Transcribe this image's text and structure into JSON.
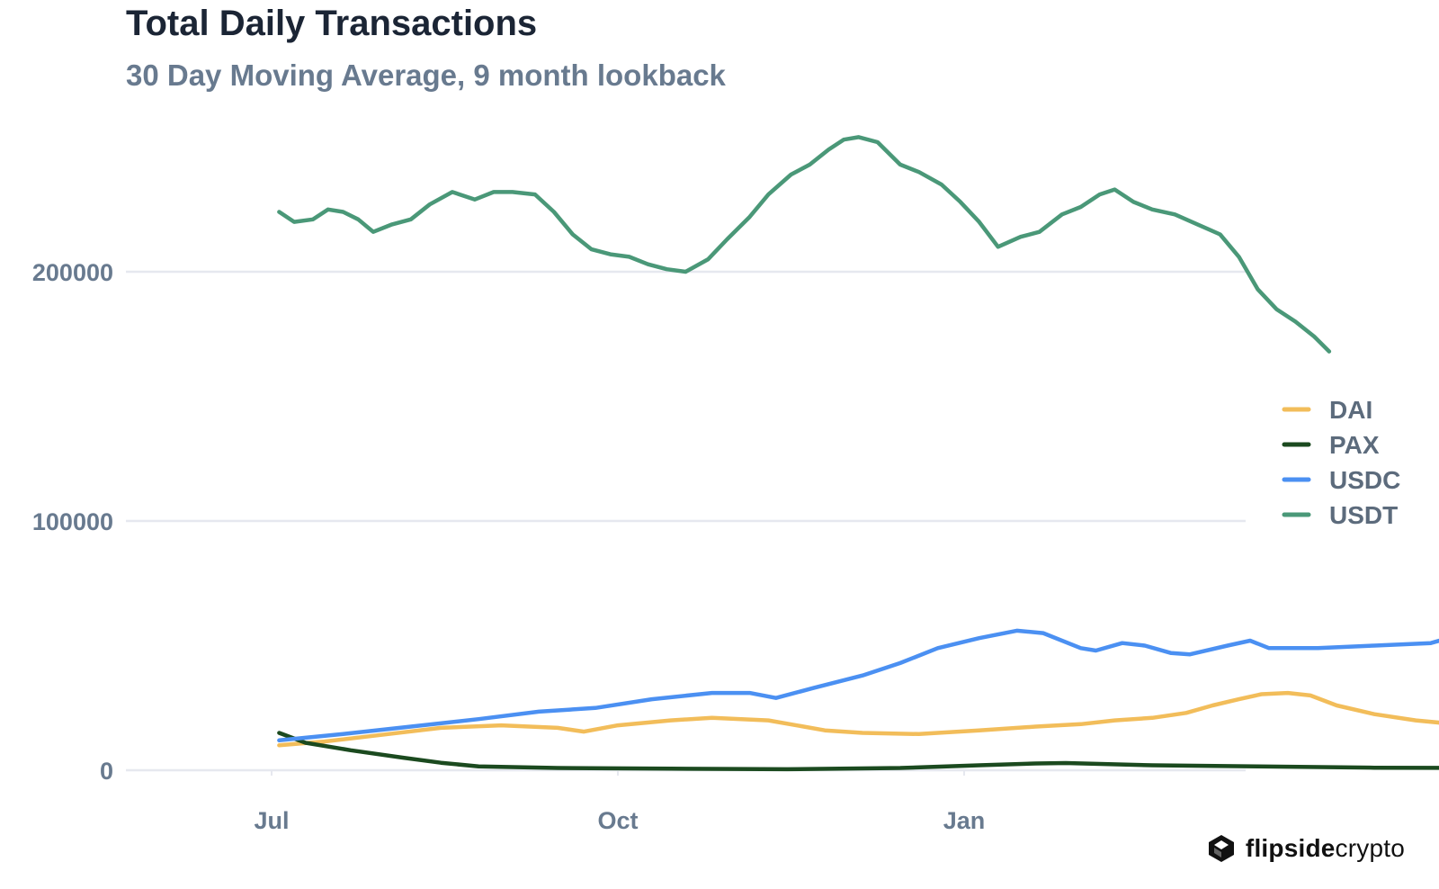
{
  "chart_data": {
    "type": "line",
    "title": "Total Daily Transactions",
    "subtitle": "30 Day Moving Average, 9 month lookback",
    "xlabel": "",
    "ylabel": "",
    "x_ticks": [
      "Jul",
      "Oct",
      "Jan"
    ],
    "y_ticks": [
      "0",
      "100000",
      "200000"
    ],
    "ylim": [
      0,
      260000
    ],
    "grid": true,
    "legend_position": "right",
    "colors": {
      "DAI": "#f2bd5a",
      "PAX": "#1b4a1f",
      "USDC": "#4b90f2",
      "USDT": "#4a9878",
      "grid": "#e6e8ef",
      "title": "#1b2535",
      "subtitle": "#687a8f"
    },
    "series": [
      {
        "name": "DAI",
        "points": [
          [
            "2021-07-03",
            10000
          ],
          [
            "2021-07-15",
            11500
          ],
          [
            "2021-08-01",
            14500
          ],
          [
            "2021-08-15",
            17000
          ],
          [
            "2021-08-31",
            18000
          ],
          [
            "2021-09-15",
            17000
          ],
          [
            "2021-09-22",
            15500
          ],
          [
            "2021-10-01",
            18000
          ],
          [
            "2021-10-15",
            20000
          ],
          [
            "2021-10-26",
            21000
          ],
          [
            "2021-11-10",
            20000
          ],
          [
            "2021-11-25",
            16000
          ],
          [
            "2021-12-05",
            15000
          ],
          [
            "2021-12-20",
            14500
          ],
          [
            "2022-01-05",
            16000
          ],
          [
            "2022-01-20",
            17500
          ],
          [
            "2022-02-01",
            18500
          ],
          [
            "2022-02-10",
            20000
          ],
          [
            "2022-02-20",
            21000
          ],
          [
            "2022-03-01",
            23000
          ],
          [
            "2022-03-08",
            26000
          ],
          [
            "2022-03-15",
            28500
          ],
          [
            "2022-03-21",
            30500
          ],
          [
            "2022-03-28",
            31000
          ],
          [
            "2022-04-03",
            30000
          ],
          [
            "2022-04-10",
            26000
          ],
          [
            "2022-04-20",
            22500
          ],
          [
            "2022-05-01",
            20000
          ],
          [
            "2022-05-08",
            19000
          ],
          [
            "2022-05-15",
            19500
          ],
          [
            "2022-05-20",
            20000
          ]
        ]
      },
      {
        "name": "PAX",
        "points": [
          [
            "2021-07-03",
            15000
          ],
          [
            "2021-07-10",
            11000
          ],
          [
            "2021-07-22",
            8000
          ],
          [
            "2021-08-05",
            5000
          ],
          [
            "2021-08-15",
            3000
          ],
          [
            "2021-08-25",
            1500
          ],
          [
            "2021-09-15",
            900
          ],
          [
            "2021-10-15",
            600
          ],
          [
            "2021-11-15",
            400
          ],
          [
            "2021-12-15",
            900
          ],
          [
            "2022-01-05",
            2000
          ],
          [
            "2022-01-20",
            2700
          ],
          [
            "2022-01-28",
            2900
          ],
          [
            "2022-02-20",
            2000
          ],
          [
            "2022-03-20",
            1500
          ],
          [
            "2022-04-20",
            1000
          ],
          [
            "2022-05-20",
            900
          ]
        ]
      },
      {
        "name": "USDC",
        "points": [
          [
            "2021-07-03",
            12000
          ],
          [
            "2021-07-20",
            14500
          ],
          [
            "2021-08-10",
            18000
          ],
          [
            "2021-08-25",
            20500
          ],
          [
            "2021-09-10",
            23500
          ],
          [
            "2021-09-25",
            25000
          ],
          [
            "2021-10-10",
            28500
          ],
          [
            "2021-10-26",
            31000
          ],
          [
            "2021-11-05",
            31000
          ],
          [
            "2021-11-12",
            29000
          ],
          [
            "2021-11-22",
            33000
          ],
          [
            "2021-12-05",
            38000
          ],
          [
            "2021-12-15",
            43000
          ],
          [
            "2021-12-25",
            49000
          ],
          [
            "2022-01-05",
            53000
          ],
          [
            "2022-01-15",
            56000
          ],
          [
            "2022-01-22",
            55000
          ],
          [
            "2022-02-01",
            49000
          ],
          [
            "2022-02-05",
            48000
          ],
          [
            "2022-02-12",
            51000
          ],
          [
            "2022-02-18",
            50000
          ],
          [
            "2022-02-25",
            47000
          ],
          [
            "2022-03-02",
            46500
          ],
          [
            "2022-03-12",
            50000
          ],
          [
            "2022-03-18",
            52000
          ],
          [
            "2022-03-23",
            49000
          ],
          [
            "2022-04-05",
            49000
          ],
          [
            "2022-04-20",
            50000
          ],
          [
            "2022-05-05",
            51000
          ],
          [
            "2022-05-12",
            54000
          ],
          [
            "2022-05-20",
            55000
          ]
        ]
      },
      {
        "name": "USDT",
        "points": [
          [
            "2021-07-03",
            224000
          ],
          [
            "2021-07-07",
            220000
          ],
          [
            "2021-07-12",
            221000
          ],
          [
            "2021-07-16",
            225000
          ],
          [
            "2021-07-20",
            224000
          ],
          [
            "2021-07-24",
            221000
          ],
          [
            "2021-07-28",
            216000
          ],
          [
            "2021-08-02",
            219000
          ],
          [
            "2021-08-07",
            221000
          ],
          [
            "2021-08-12",
            227000
          ],
          [
            "2021-08-18",
            232000
          ],
          [
            "2021-08-24",
            229000
          ],
          [
            "2021-08-29",
            232000
          ],
          [
            "2021-09-03",
            232000
          ],
          [
            "2021-09-09",
            231000
          ],
          [
            "2021-09-14",
            224000
          ],
          [
            "2021-09-19",
            215000
          ],
          [
            "2021-09-24",
            209000
          ],
          [
            "2021-09-29",
            207000
          ],
          [
            "2021-10-04",
            206000
          ],
          [
            "2021-10-09",
            203000
          ],
          [
            "2021-10-14",
            201000
          ],
          [
            "2021-10-19",
            200000
          ],
          [
            "2021-10-25",
            205000
          ],
          [
            "2021-10-30",
            213000
          ],
          [
            "2021-11-05",
            222000
          ],
          [
            "2021-11-10",
            231000
          ],
          [
            "2021-11-16",
            239000
          ],
          [
            "2021-11-21",
            243000
          ],
          [
            "2021-11-26",
            249000
          ],
          [
            "2021-11-30",
            253000
          ],
          [
            "2021-12-04",
            254000
          ],
          [
            "2021-12-09",
            252000
          ],
          [
            "2021-12-15",
            243000
          ],
          [
            "2021-12-20",
            240000
          ],
          [
            "2021-12-26",
            235000
          ],
          [
            "2021-12-31",
            228000
          ],
          [
            "2022-01-05",
            220000
          ],
          [
            "2022-01-10",
            210000
          ],
          [
            "2022-01-16",
            214000
          ],
          [
            "2022-01-21",
            216000
          ],
          [
            "2022-01-27",
            223000
          ],
          [
            "2022-02-01",
            226000
          ],
          [
            "2022-02-06",
            231000
          ],
          [
            "2022-02-10",
            233000
          ],
          [
            "2022-02-15",
            228000
          ],
          [
            "2022-02-20",
            225000
          ],
          [
            "2022-02-26",
            223000
          ],
          [
            "2022-03-04",
            219000
          ],
          [
            "2022-03-10",
            215000
          ],
          [
            "2022-03-15",
            206000
          ],
          [
            "2022-03-20",
            193000
          ],
          [
            "2022-03-25",
            185000
          ],
          [
            "2022-03-30",
            180000
          ],
          [
            "2022-04-04",
            174000
          ],
          [
            "2022-04-08",
            168000
          ]
        ]
      }
    ]
  },
  "brand": {
    "bold": "flipside",
    "light": "crypto"
  }
}
